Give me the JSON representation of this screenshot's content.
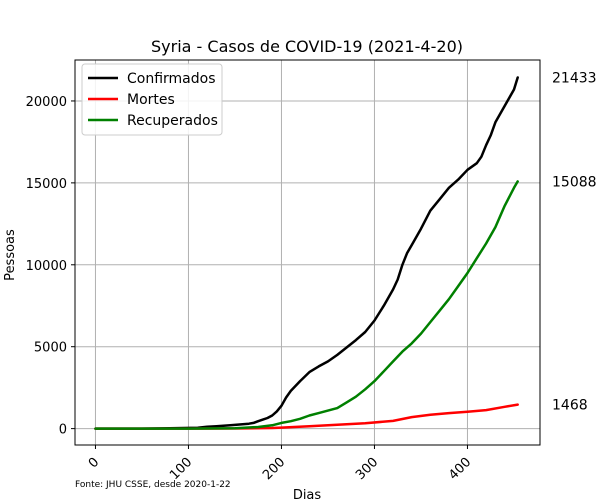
{
  "chart_data": {
    "type": "line",
    "title": "Syria - Casos de COVID-19 (2021-4-20)",
    "xlabel": "Dias",
    "ylabel": "Pessoas",
    "xlim": [
      -22,
      478
    ],
    "ylim": [
      -1000,
      22500
    ],
    "xticks": [
      0,
      100,
      200,
      300,
      400
    ],
    "xtick_labels": [
      "0",
      "100",
      "200",
      "300",
      "400"
    ],
    "yticks": [
      0,
      5000,
      10000,
      15000,
      20000
    ],
    "ytick_labels": [
      "0",
      "5000",
      "10000",
      "15000",
      "20000"
    ],
    "grid": true,
    "legend_position": "top-left",
    "source_note": "Fonte: JHU CSSE, desde 2020-1-22",
    "series": [
      {
        "name": "Confirmados",
        "color": "#000000",
        "end_label": "21433",
        "x": [
          0,
          50,
          80,
          110,
          120,
          130,
          145,
          155,
          165,
          170,
          175,
          180,
          185,
          190,
          195,
          200,
          205,
          210,
          220,
          230,
          240,
          250,
          260,
          270,
          280,
          290,
          300,
          310,
          320,
          325,
          330,
          335,
          340,
          350,
          360,
          370,
          380,
          390,
          400,
          410,
          415,
          420,
          425,
          430,
          440,
          450,
          454
        ],
        "y": [
          0,
          0,
          20,
          50,
          110,
          150,
          200,
          250,
          300,
          350,
          450,
          550,
          650,
          800,
          1050,
          1400,
          1900,
          2300,
          2900,
          3450,
          3800,
          4100,
          4500,
          4950,
          5400,
          5900,
          6600,
          7500,
          8500,
          9100,
          10000,
          10700,
          11200,
          12200,
          13300,
          14000,
          14700,
          15200,
          15800,
          16200,
          16600,
          17300,
          17900,
          18700,
          19700,
          20700,
          21433
        ]
      },
      {
        "name": "Mortes",
        "color": "#ff0000",
        "end_label": "1468",
        "x": [
          0,
          100,
          150,
          190,
          200,
          230,
          260,
          290,
          320,
          340,
          360,
          380,
          400,
          420,
          440,
          454
        ],
        "y": [
          0,
          0,
          10,
          40,
          60,
          150,
          230,
          330,
          470,
          700,
          850,
          950,
          1030,
          1130,
          1330,
          1468
        ]
      },
      {
        "name": "Recuperados",
        "color": "#008000",
        "end_label": "15088",
        "x": [
          0,
          100,
          150,
          175,
          190,
          200,
          210,
          220,
          230,
          240,
          250,
          260,
          270,
          280,
          290,
          300,
          310,
          320,
          330,
          340,
          350,
          360,
          370,
          380,
          390,
          400,
          410,
          420,
          430,
          440,
          450,
          454
        ],
        "y": [
          0,
          0,
          20,
          100,
          200,
          350,
          450,
          600,
          800,
          950,
          1100,
          1250,
          1600,
          1950,
          2400,
          2900,
          3500,
          4100,
          4700,
          5200,
          5800,
          6500,
          7200,
          7900,
          8700,
          9500,
          10400,
          11300,
          12300,
          13600,
          14700,
          15088
        ]
      }
    ]
  }
}
